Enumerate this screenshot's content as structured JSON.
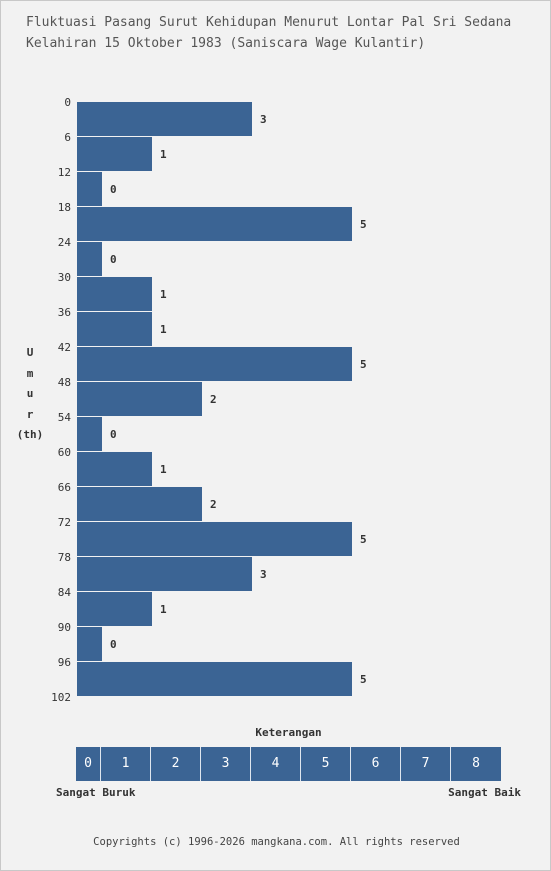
{
  "title_lines": [
    "Fluktuasi Pasang Surut Kehidupan Menurut Lontar Pal Sri Sedana",
    "Kelahiran 15 Oktober 1983 (Saniscara Wage Kulantir)"
  ],
  "y_axis_label": [
    "U",
    "m",
    "u",
    "r",
    "(th)"
  ],
  "colors": {
    "bar": "#3b6494",
    "background": "#f2f2f2",
    "text": "#333333"
  },
  "chart_data": {
    "type": "bar",
    "orientation": "horizontal",
    "title": "Fluktuasi Pasang Surut Kehidupan Menurut Lontar Pal Sri Sedana Kelahiran 15 Oktober 1983 (Saniscara Wage Kulantir)",
    "ylabel": "Umur (th)",
    "y_ticks": [
      0,
      6,
      12,
      18,
      24,
      30,
      36,
      42,
      48,
      54,
      60,
      66,
      72,
      78,
      84,
      90,
      96,
      102
    ],
    "bins": [
      {
        "from": 0,
        "to": 6,
        "value": 3
      },
      {
        "from": 6,
        "to": 12,
        "value": 1
      },
      {
        "from": 12,
        "to": 18,
        "value": 0
      },
      {
        "from": 18,
        "to": 24,
        "value": 5
      },
      {
        "from": 24,
        "to": 30,
        "value": 0
      },
      {
        "from": 30,
        "to": 36,
        "value": 1
      },
      {
        "from": 36,
        "to": 42,
        "value": 1
      },
      {
        "from": 42,
        "to": 48,
        "value": 5
      },
      {
        "from": 48,
        "to": 54,
        "value": 2
      },
      {
        "from": 54,
        "to": 60,
        "value": 0
      },
      {
        "from": 60,
        "to": 66,
        "value": 1
      },
      {
        "from": 66,
        "to": 72,
        "value": 2
      },
      {
        "from": 72,
        "to": 78,
        "value": 5
      },
      {
        "from": 78,
        "to": 84,
        "value": 3
      },
      {
        "from": 84,
        "to": 90,
        "value": 1
      },
      {
        "from": 90,
        "to": 96,
        "value": 0
      },
      {
        "from": 96,
        "to": 102,
        "value": 5
      }
    ],
    "value_range": [
      0,
      8
    ],
    "grid": false
  },
  "legend": {
    "title": "Keterangan",
    "scale": [
      "0",
      "1",
      "2",
      "3",
      "4",
      "5",
      "6",
      "7",
      "8"
    ],
    "low_label": "Sangat Buruk",
    "high_label": "Sangat Baik"
  },
  "footer": "Copyrights (c) 1996-2026 mangkana.com. All rights reserved"
}
